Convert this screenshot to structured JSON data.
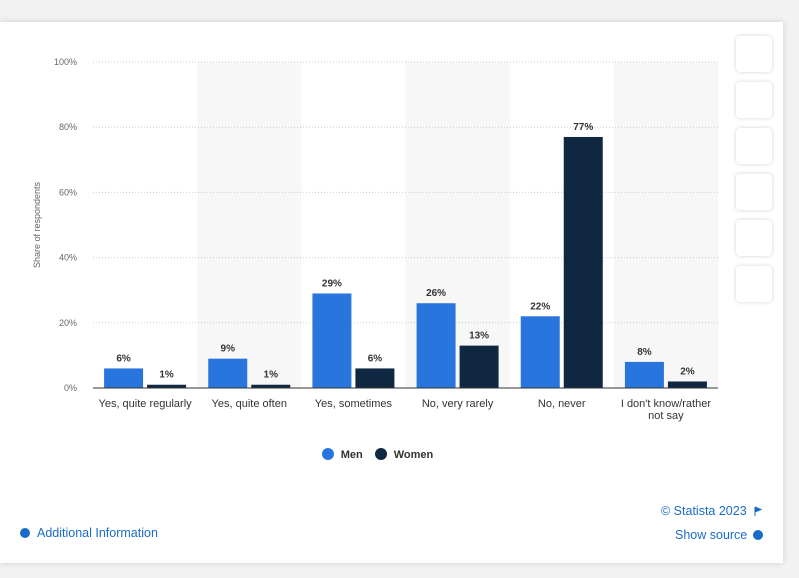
{
  "chart_data": {
    "type": "bar",
    "y_label": "Share of respondents",
    "categories": [
      "Yes, quite regularly",
      "Yes, quite often",
      "Yes, sometimes",
      "No, very rarely",
      "No, never",
      "I don't know/rather not say"
    ],
    "series": [
      {
        "name": "Men",
        "color": "#2876dd",
        "values": [
          6,
          9,
          29,
          26,
          22,
          8
        ],
        "value_labels": [
          "6%",
          "9%",
          "29%",
          "26%",
          "22%",
          "8%"
        ]
      },
      {
        "name": "Women",
        "color": "#0f2741",
        "values": [
          1,
          1,
          6,
          13,
          77,
          2
        ],
        "value_labels": [
          "1%",
          "1%",
          "6%",
          "13%",
          "77%",
          "2%"
        ]
      }
    ],
    "ylim": [
      0,
      100
    ],
    "yticks": [
      {
        "value": 0,
        "label": "0%"
      },
      {
        "value": 20,
        "label": "20%"
      },
      {
        "value": 40,
        "label": "40%"
      },
      {
        "value": 60,
        "label": "60%"
      },
      {
        "value": 80,
        "label": "80%"
      },
      {
        "value": 100,
        "label": "100%"
      }
    ],
    "grid": true
  },
  "footer": {
    "copyright": "© Statista 2023",
    "show_source": "Show source",
    "additional_info": "Additional Information"
  }
}
